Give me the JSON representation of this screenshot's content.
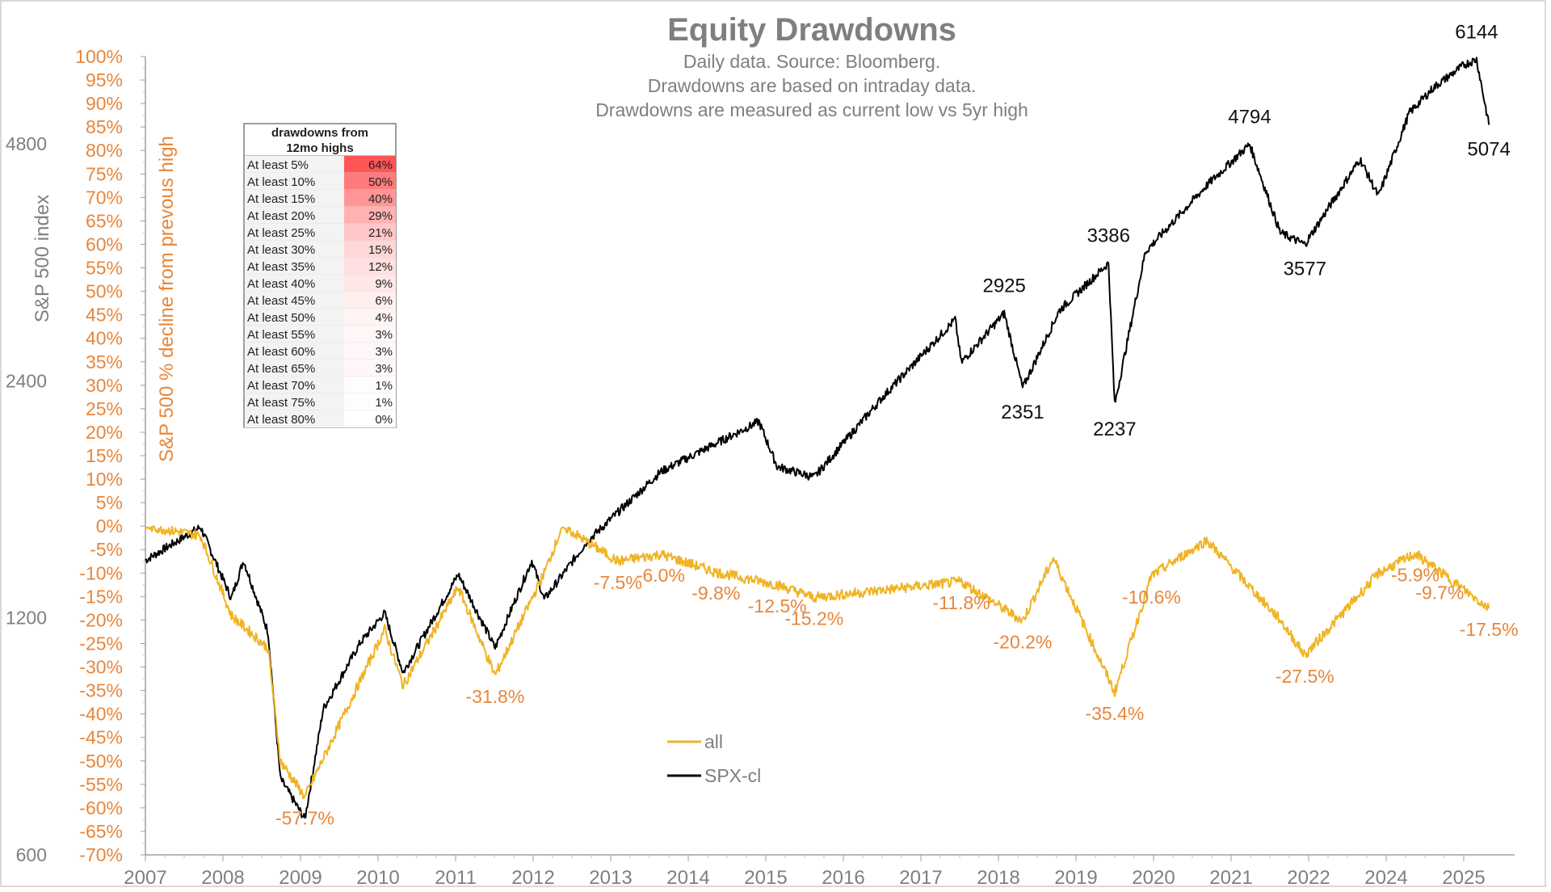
{
  "chart_data": {
    "type": "line",
    "title": "Equity Drawdowns",
    "subtitle_lines": [
      "Daily data. Source: Bloomberg.",
      "Drawdowns are based on intraday data.",
      "Drawdowns are measured as current low vs 5yr high"
    ],
    "y_left_label": "S&P 500 index",
    "y_left_scale": "log",
    "y_left_ticks": [
      "4800",
      "2400",
      "1200",
      "600"
    ],
    "y_left_range": [
      600,
      6144
    ],
    "y_right_label": "S&P 500 % decline from prevous high",
    "y_right_ticks": [
      "100%",
      "95%",
      "90%",
      "85%",
      "80%",
      "75%",
      "70%",
      "65%",
      "60%",
      "55%",
      "50%",
      "45%",
      "40%",
      "35%",
      "30%",
      "25%",
      "20%",
      "15%",
      "10%",
      "5%",
      "0%",
      "-5%",
      "-10%",
      "-15%",
      "-20%",
      "-25%",
      "-30%",
      "-35%",
      "-40%",
      "-45%",
      "-50%",
      "-55%",
      "-60%",
      "-65%",
      "-70%"
    ],
    "y_right_range": [
      -70,
      100
    ],
    "x_tick_labels": [
      "2007",
      "2008",
      "2009",
      "2010",
      "2011",
      "2012",
      "2013",
      "2014",
      "2015",
      "2016",
      "2017",
      "2018",
      "2019",
      "2020",
      "2021",
      "2022",
      "2024",
      "2025"
    ],
    "grid": false,
    "legend_placement": "bottom-center",
    "series": [
      {
        "name": "SPX-cl",
        "color": "#000000",
        "points": [
          [
            "2007-01",
            1420
          ],
          [
            "2007-10",
            1565
          ],
          [
            "2008-03",
            1270
          ],
          [
            "2008-05",
            1420
          ],
          [
            "2008-09",
            1150
          ],
          [
            "2008-11",
            750
          ],
          [
            "2009-03",
            666
          ],
          [
            "2009-06",
            920
          ],
          [
            "2009-12",
            1115
          ],
          [
            "2010-04",
            1217
          ],
          [
            "2010-07",
            1022
          ],
          [
            "2011-04",
            1363
          ],
          [
            "2011-10",
            1099
          ],
          [
            "2012-04",
            1419
          ],
          [
            "2012-06",
            1266
          ],
          [
            "2013-01",
            1500
          ],
          [
            "2014-01",
            1840
          ],
          [
            "2015-05",
            2130
          ],
          [
            "2015-08",
            1867
          ],
          [
            "2016-02",
            1810
          ],
          [
            "2017-01",
            2280
          ],
          [
            "2018-01",
            2872
          ],
          [
            "2018-02",
            2532
          ],
          [
            "2018-09",
            2925
          ],
          [
            "2018-12",
            2351
          ],
          [
            "2019-06",
            2950
          ],
          [
            "2020-02",
            3386
          ],
          [
            "2020-03",
            2237
          ],
          [
            "2020-08",
            3500
          ],
          [
            "2021-06",
            4250
          ],
          [
            "2022-01",
            4794
          ],
          [
            "2022-06",
            3700
          ],
          [
            "2022-10",
            3577
          ],
          [
            "2023-07",
            4590
          ],
          [
            "2023-10",
            4117
          ],
          [
            "2024-03",
            5250
          ],
          [
            "2024-07",
            5660
          ],
          [
            "2024-12",
            6050
          ],
          [
            "2025-02",
            6144
          ],
          [
            "2025-04",
            5074
          ]
        ]
      },
      {
        "name": "all",
        "color": "#f0b323",
        "points": [
          [
            "2007-01",
            0
          ],
          [
            "2007-10",
            -2
          ],
          [
            "2008-03",
            -19
          ],
          [
            "2008-09",
            -26
          ],
          [
            "2008-11",
            -50
          ],
          [
            "2009-03",
            -57.7
          ],
          [
            "2010-04",
            -22
          ],
          [
            "2010-07",
            -34
          ],
          [
            "2011-04",
            -13
          ],
          [
            "2011-10",
            -31.8
          ],
          [
            "2012-06",
            -10
          ],
          [
            "2012-09",
            0
          ],
          [
            "2013-06",
            -7.5
          ],
          [
            "2014-01",
            -6.0
          ],
          [
            "2014-10",
            -9.8
          ],
          [
            "2015-08",
            -12.5
          ],
          [
            "2016-02",
            -15.2
          ],
          [
            "2018-02",
            -11.8
          ],
          [
            "2018-12",
            -20.2
          ],
          [
            "2019-05",
            -6.8
          ],
          [
            "2020-03",
            -35.4
          ],
          [
            "2020-09",
            -10.6
          ],
          [
            "2021-06",
            -3
          ],
          [
            "2022-06",
            -20
          ],
          [
            "2022-10",
            -27.5
          ],
          [
            "2023-10",
            -10
          ],
          [
            "2024-04",
            -5.9
          ],
          [
            "2024-08",
            -9.7
          ],
          [
            "2025-04",
            -17.5
          ]
        ]
      }
    ],
    "spx_annotations": [
      {
        "label": "6144",
        "date": "2025-02",
        "value": 6144,
        "position": "above"
      },
      {
        "label": "5074",
        "date": "2025-04",
        "value": 5074,
        "position": "below"
      },
      {
        "label": "4794",
        "date": "2022-01",
        "value": 4794,
        "position": "above"
      },
      {
        "label": "3577",
        "date": "2022-10",
        "value": 3577,
        "position": "below"
      },
      {
        "label": "3386",
        "date": "2020-02",
        "value": 3386,
        "position": "above"
      },
      {
        "label": "2237",
        "date": "2020-03",
        "value": 2237,
        "position": "below"
      },
      {
        "label": "2925",
        "date": "2018-09",
        "value": 2925,
        "position": "above"
      },
      {
        "label": "2351",
        "date": "2018-12",
        "value": 2351,
        "position": "below"
      }
    ],
    "drawdown_annotations": [
      {
        "label": "-57.7%",
        "date": "2009-03",
        "value": -57.7
      },
      {
        "label": "-31.8%",
        "date": "2011-10",
        "value": -31.8
      },
      {
        "label": "-7.5%",
        "date": "2013-06",
        "value": -7.5
      },
      {
        "label": "-6.0%",
        "date": "2014-01",
        "value": -6.0
      },
      {
        "label": "-9.8%",
        "date": "2014-10",
        "value": -9.8
      },
      {
        "label": "-12.5%",
        "date": "2015-08",
        "value": -12.5
      },
      {
        "label": "-15.2%",
        "date": "2016-02",
        "value": -15.2
      },
      {
        "label": "-11.8%",
        "date": "2018-02",
        "value": -11.8
      },
      {
        "label": "-20.2%",
        "date": "2018-12",
        "value": -20.2
      },
      {
        "label": "-35.4%",
        "date": "2020-03",
        "value": -35.4
      },
      {
        "label": "-10.6%",
        "date": "2020-09",
        "value": -10.6
      },
      {
        "label": "-27.5%",
        "date": "2022-10",
        "value": -27.5
      },
      {
        "label": "-5.9%",
        "date": "2024-04",
        "value": -5.9
      },
      {
        "label": "-9.7%",
        "date": "2024-08",
        "value": -9.7
      },
      {
        "label": "-17.5%",
        "date": "2025-04",
        "value": -17.5
      }
    ],
    "table": {
      "header": [
        "drawdowns from",
        "12mo highs"
      ],
      "rows": [
        {
          "label": "At least 5%",
          "value": "64%"
        },
        {
          "label": "At least 10%",
          "value": "50%"
        },
        {
          "label": "At least 15%",
          "value": "40%"
        },
        {
          "label": "At least 20%",
          "value": "29%"
        },
        {
          "label": "At least 25%",
          "value": "21%"
        },
        {
          "label": "At least 30%",
          "value": "15%"
        },
        {
          "label": "At least 35%",
          "value": "12%"
        },
        {
          "label": "At least 40%",
          "value": "9%"
        },
        {
          "label": "At least 45%",
          "value": "6%"
        },
        {
          "label": "At least 50%",
          "value": "4%"
        },
        {
          "label": "At least 55%",
          "value": "3%"
        },
        {
          "label": "At least 60%",
          "value": "3%"
        },
        {
          "label": "At least 65%",
          "value": "3%"
        },
        {
          "label": "At least 70%",
          "value": "1%"
        },
        {
          "label": "At least 75%",
          "value": "1%"
        },
        {
          "label": "At least 80%",
          "value": "0%"
        }
      ]
    }
  }
}
